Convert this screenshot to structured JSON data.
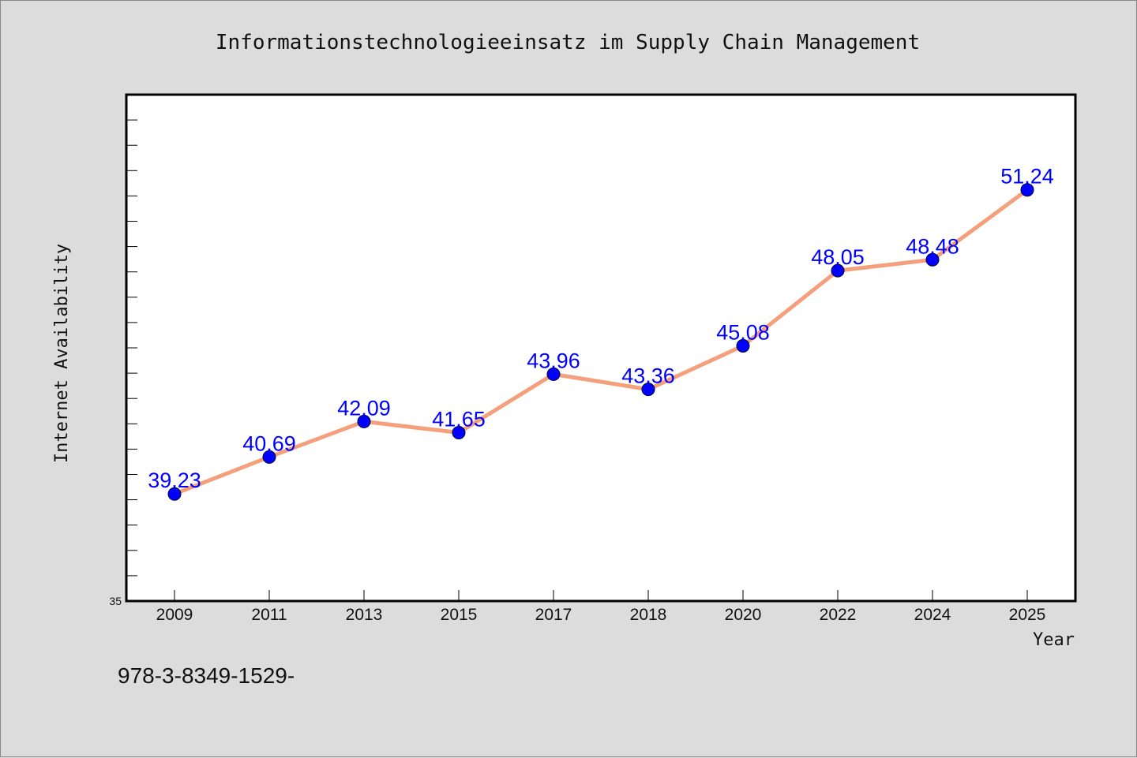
{
  "chart_data": {
    "type": "line",
    "title": "Informationstechnologieeinsatz im Supply Chain Management",
    "xlabel": "Year",
    "ylabel": "Internet Availability",
    "categories": [
      "2009",
      "2011",
      "2013",
      "2015",
      "2017",
      "2018",
      "2020",
      "2022",
      "2024",
      "2025"
    ],
    "series": [
      {
        "values": [
          39.23,
          40.69,
          42.09,
          41.65,
          43.96,
          43.36,
          45.08,
          48.05,
          48.48,
          51.24
        ],
        "labels": [
          "39.23",
          "40.69",
          "42.09",
          "41.65",
          "43.96",
          "43.36",
          "45.08",
          "48.05",
          "48.48",
          "51.24"
        ]
      }
    ],
    "ylim": [
      35,
      55
    ],
    "y_tick_labels": [
      "35"
    ],
    "grid": false,
    "colors": {
      "line": "#f4a07c",
      "marker": "#0000ff",
      "data_label": "#0000ff",
      "plot_background": "#ffffff",
      "figure_background": "#dcdcdc"
    }
  },
  "footer_text": "978-3-8349-1529-"
}
